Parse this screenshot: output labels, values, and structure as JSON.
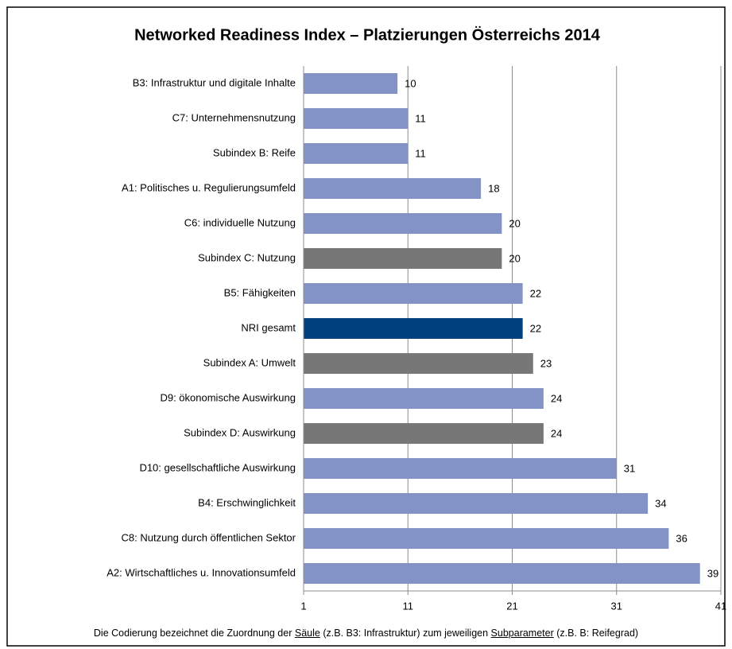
{
  "chart_data": {
    "type": "bar",
    "orientation": "horizontal",
    "title": "Networked Readiness Index – Platzierungen Österreichs 2014",
    "categories": [
      "B3: Infrastruktur und digitale Inhalte",
      "C7: Unternehmensnutzung",
      "Subindex B: Reife",
      "A1: Politisches u. Regulierungsumfeld",
      "C6: individuelle Nutzung",
      "Subindex C: Nutzung",
      "B5: Fähigkeiten",
      "NRI gesamt",
      "Subindex A: Umwelt",
      "D9: ökonomische Auswirkung",
      "Subindex D: Auswirkung",
      "D10: gesellschaftliche Auswirkung",
      "B4: Erschwinglichkeit",
      "C8: Nutzung durch öffentlichen Sektor",
      "A2: Wirtschaftliches u. Innovationsumfeld"
    ],
    "values": [
      10,
      11,
      11,
      18,
      20,
      20,
      22,
      22,
      23,
      24,
      24,
      31,
      34,
      36,
      39
    ],
    "colors": [
      "#8393c5",
      "#8393c5",
      "#8393c5",
      "#8393c5",
      "#8393c5",
      "#777777",
      "#8393c5",
      "#00427f",
      "#777777",
      "#8393c5",
      "#777777",
      "#8393c5",
      "#8393c5",
      "#8393c5",
      "#8393c5"
    ],
    "xlim": [
      1,
      41
    ],
    "xticks": [
      1,
      11,
      21,
      31,
      41
    ],
    "grid": true,
    "footnote": [
      "Die Codierung bezeichnet die Zuordnung der",
      "Säule",
      "(z.B. B3: Infrastruktur) zum jeweiligen",
      "Subparameter",
      "(z.B. B: Reifegrad)"
    ]
  }
}
